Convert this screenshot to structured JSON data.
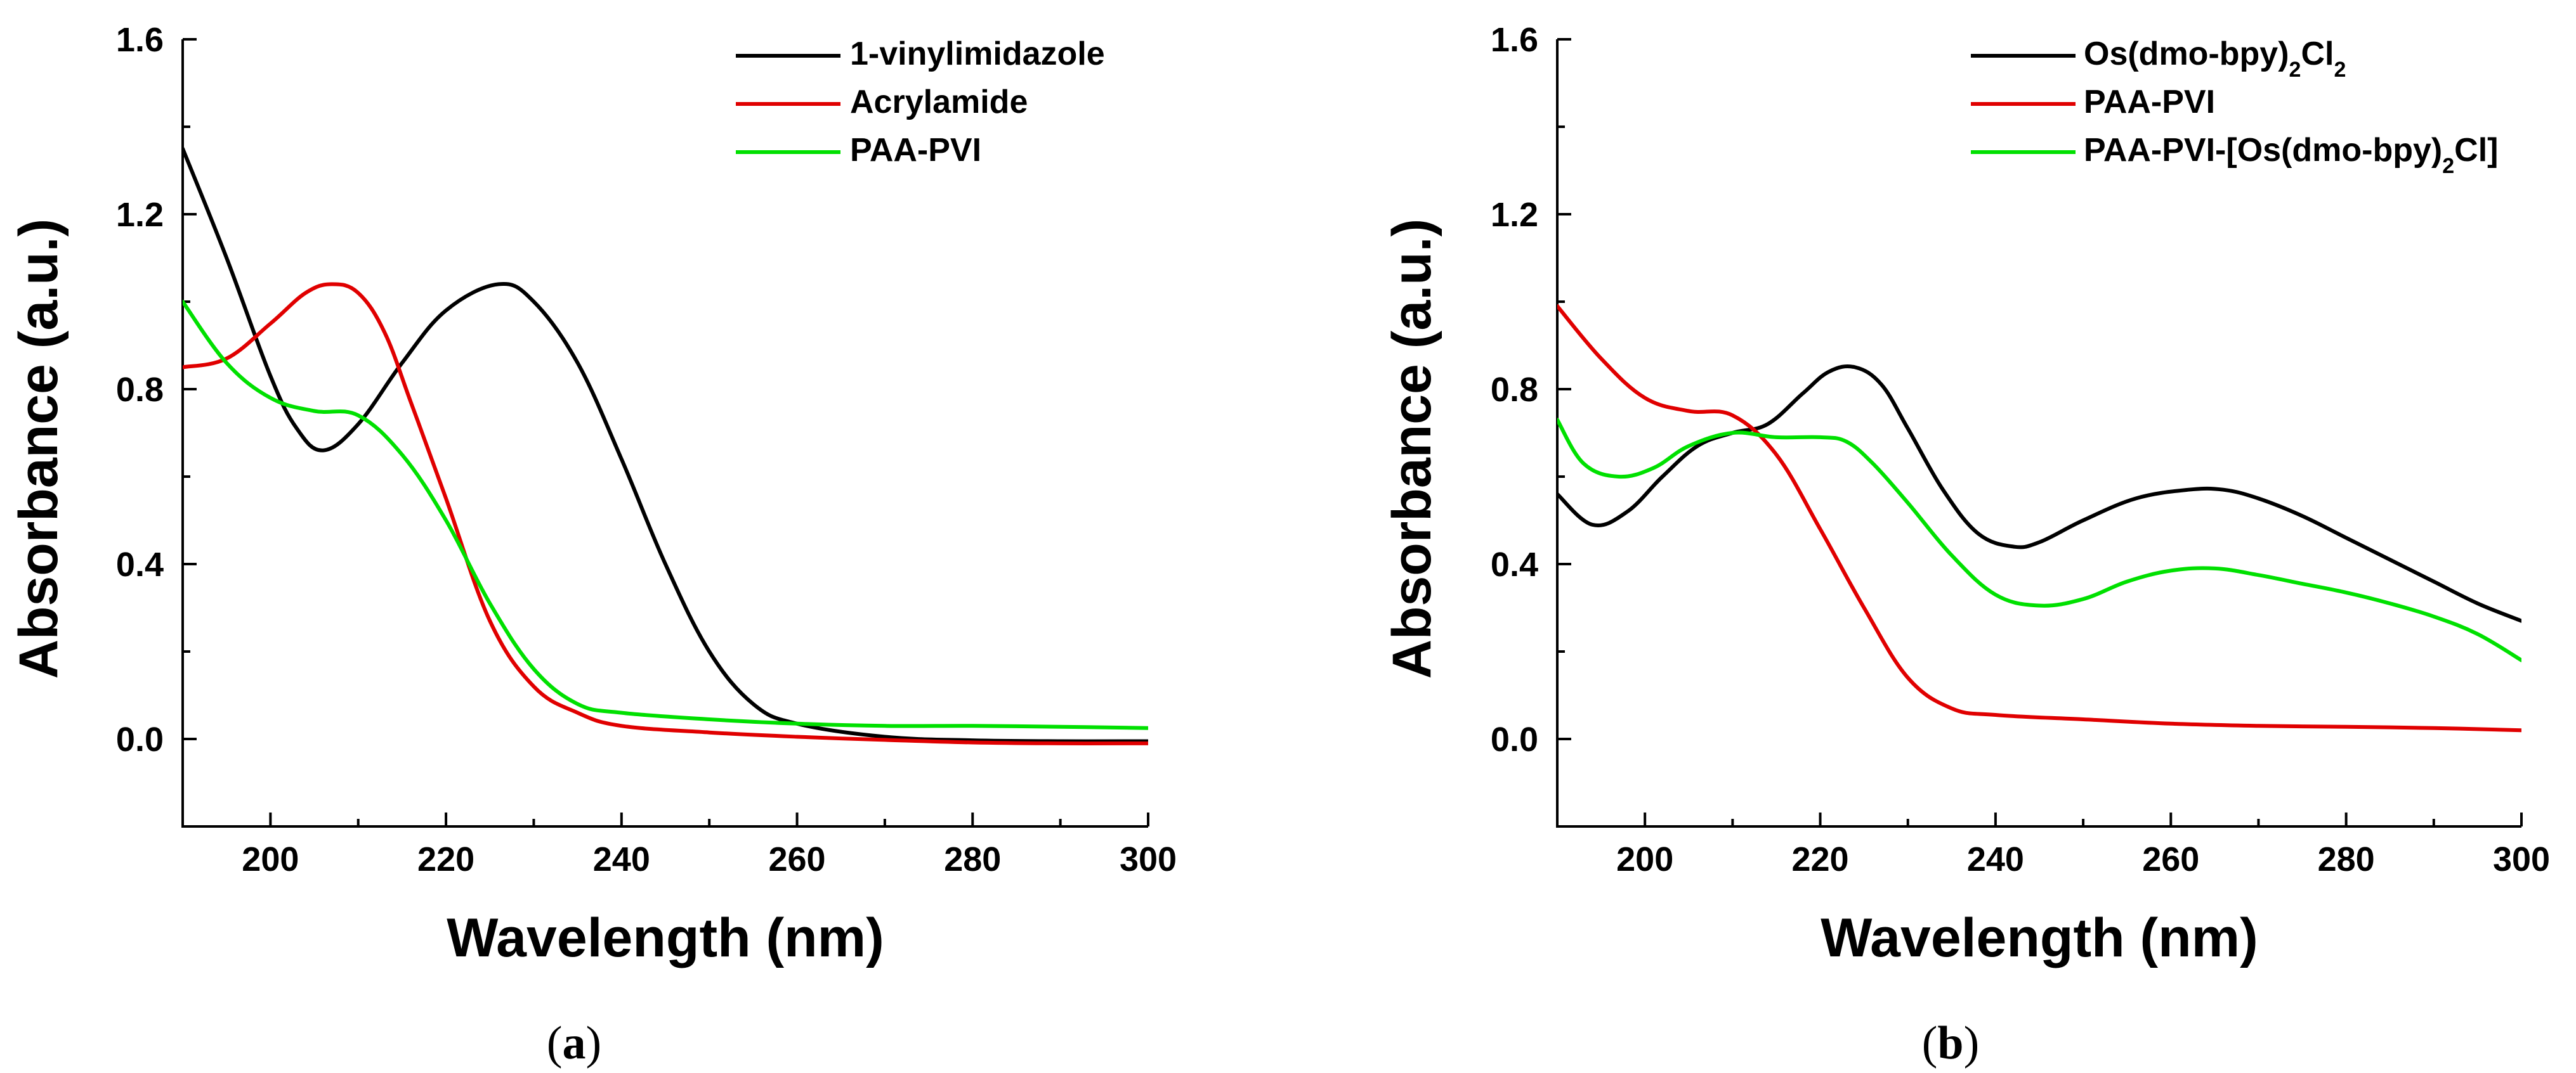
{
  "chart_data": [
    {
      "type": "line",
      "panel_label": "(a)",
      "xlabel": "Wavelength (nm)",
      "ylabel": "Absorbance (a.u.)",
      "xlim": [
        190,
        300
      ],
      "ylim": [
        -0.2,
        1.6
      ],
      "xticks": [
        200,
        220,
        240,
        260,
        280,
        300
      ],
      "yticks": [
        0.0,
        0.4,
        0.8,
        1.2,
        1.6
      ],
      "legend_position": "top-right",
      "series": [
        {
          "name": "1-vinylimidazole",
          "legend": [
            "1-vinylimidazole"
          ],
          "color": "#000000",
          "x": [
            190,
            195,
            200,
            203,
            206,
            210,
            215,
            220,
            226,
            230,
            235,
            240,
            245,
            250,
            255,
            260,
            270,
            280,
            290,
            300
          ],
          "y": [
            1.35,
            1.1,
            0.83,
            0.71,
            0.66,
            0.72,
            0.86,
            0.98,
            1.04,
            1.0,
            0.86,
            0.64,
            0.4,
            0.2,
            0.08,
            0.035,
            0.005,
            -0.003,
            -0.005,
            -0.005
          ]
        },
        {
          "name": "Acrylamide",
          "legend": [
            "Acrylamide"
          ],
          "color": "#e00000",
          "x": [
            190,
            195,
            200,
            204,
            207,
            210,
            213,
            216,
            220,
            225,
            230,
            235,
            240,
            250,
            260,
            270,
            280,
            290,
            300
          ],
          "y": [
            0.85,
            0.87,
            0.95,
            1.02,
            1.04,
            1.02,
            0.93,
            0.77,
            0.55,
            0.27,
            0.12,
            0.06,
            0.03,
            0.015,
            0.005,
            -0.002,
            -0.008,
            -0.01,
            -0.01
          ]
        },
        {
          "name": "PAA-PVI",
          "legend": [
            "PAA-PVI"
          ],
          "color": "#00e000",
          "x": [
            190,
            195,
            200,
            205,
            210,
            215,
            220,
            225,
            230,
            235,
            240,
            250,
            260,
            270,
            280,
            290,
            300
          ],
          "y": [
            1.0,
            0.86,
            0.78,
            0.75,
            0.74,
            0.65,
            0.5,
            0.31,
            0.16,
            0.08,
            0.06,
            0.045,
            0.035,
            0.03,
            0.03,
            0.028,
            0.025
          ]
        }
      ]
    },
    {
      "type": "line",
      "panel_label": "(b)",
      "xlabel": "Wavelength (nm)",
      "ylabel": "Absorbance (a.u.)",
      "xlim": [
        190,
        300
      ],
      "ylim": [
        -0.2,
        1.6
      ],
      "xticks": [
        200,
        220,
        240,
        260,
        280,
        300
      ],
      "yticks": [
        0.0,
        0.4,
        0.8,
        1.2,
        1.6
      ],
      "legend_position": "top-right",
      "series": [
        {
          "name": "Os(dmo-bpy)2Cl2",
          "legend": [
            "Os(dmo-bpy)",
            "2",
            "Cl",
            "2"
          ],
          "color": "#000000",
          "x": [
            190,
            194,
            198,
            202,
            206,
            210,
            214,
            218,
            221,
            224,
            227,
            230,
            234,
            238,
            242,
            245,
            250,
            256,
            262,
            266,
            270,
            275,
            280,
            285,
            290,
            295,
            300
          ],
          "y": [
            0.56,
            0.49,
            0.52,
            0.6,
            0.67,
            0.7,
            0.72,
            0.79,
            0.84,
            0.85,
            0.81,
            0.71,
            0.57,
            0.47,
            0.44,
            0.45,
            0.5,
            0.55,
            0.57,
            0.57,
            0.55,
            0.51,
            0.46,
            0.41,
            0.36,
            0.31,
            0.27
          ]
        },
        {
          "name": "PAA-PVI",
          "legend": [
            "PAA-PVI"
          ],
          "color": "#e00000",
          "x": [
            190,
            195,
            200,
            205,
            210,
            215,
            220,
            225,
            230,
            235,
            240,
            250,
            260,
            270,
            280,
            290,
            300
          ],
          "y": [
            0.99,
            0.87,
            0.78,
            0.75,
            0.74,
            0.65,
            0.48,
            0.3,
            0.14,
            0.07,
            0.055,
            0.045,
            0.035,
            0.03,
            0.028,
            0.025,
            0.02
          ]
        },
        {
          "name": "PAA-PVI-[Os(dmo-bpy)2Cl]",
          "legend": [
            "PAA-PVI-[Os(dmo-bpy)",
            "2",
            "Cl]"
          ],
          "color": "#00e000",
          "x": [
            190,
            193,
            197,
            201,
            205,
            210,
            215,
            220,
            223,
            226,
            230,
            235,
            240,
            245,
            250,
            255,
            260,
            265,
            270,
            275,
            280,
            285,
            290,
            295,
            300
          ],
          "y": [
            0.73,
            0.63,
            0.6,
            0.62,
            0.67,
            0.7,
            0.69,
            0.69,
            0.68,
            0.63,
            0.54,
            0.42,
            0.33,
            0.305,
            0.32,
            0.36,
            0.385,
            0.39,
            0.375,
            0.355,
            0.335,
            0.31,
            0.28,
            0.24,
            0.18
          ]
        }
      ]
    }
  ]
}
